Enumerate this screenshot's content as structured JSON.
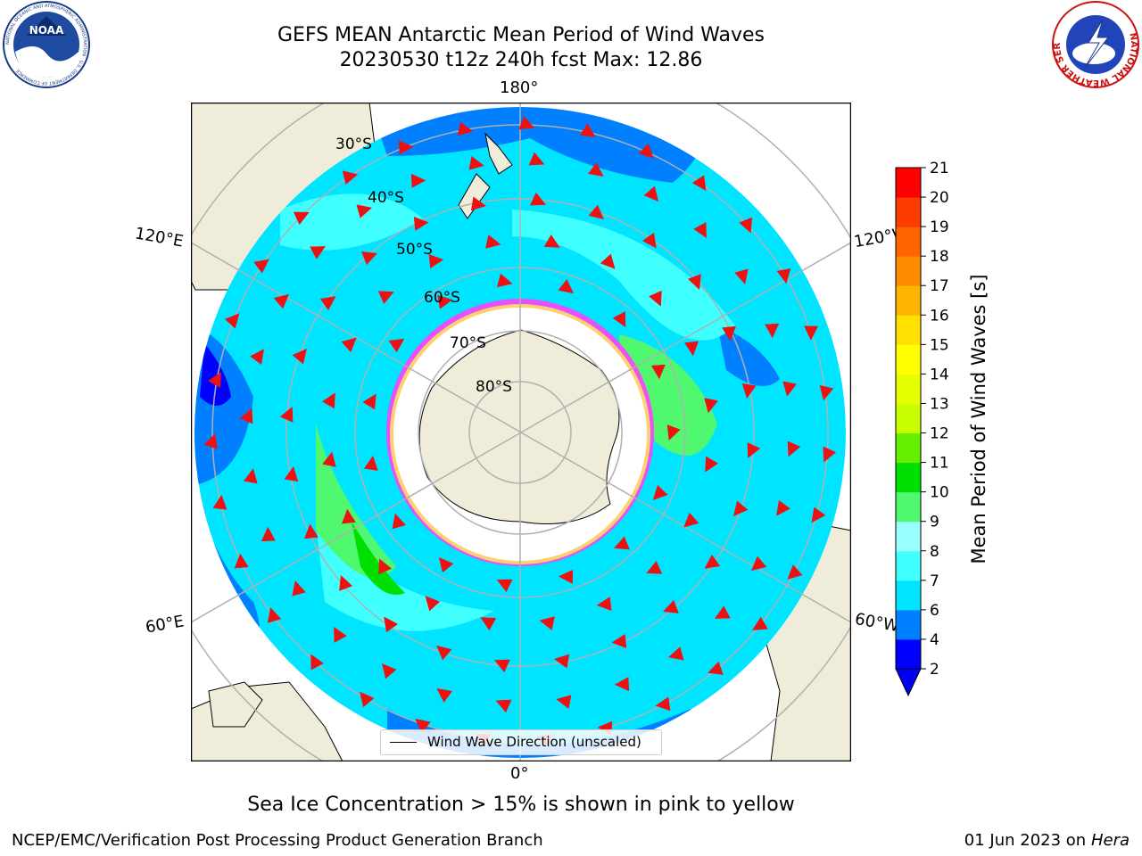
{
  "header": {
    "title_line1": "GEFS MEAN Antarctic Mean Period of Wind Waves",
    "title_line2": "20230530 t12z 240h fcst   Max: 12.86"
  },
  "logos": {
    "left": {
      "text": "NOAA",
      "ring_text": "NATIONAL OCEANIC AND ATMOSPHERIC ADMINISTRATION · U.S. DEPARTMENT OF COMMERCE"
    },
    "right": {
      "ring_text": "NATIONAL WEATHER SERVICE"
    }
  },
  "map": {
    "longitude_labels": {
      "top": "180°",
      "bottom": "0°",
      "upper_left": "120°E",
      "upper_right": "120°W",
      "lower_left": "60°E",
      "lower_right": "60°W"
    },
    "latitude_labels": [
      "30°S",
      "40°S",
      "50°S",
      "60°S",
      "70°S",
      "80°S"
    ],
    "legend_label": "Wind Wave Direction (unscaled)",
    "colors": {
      "land": "#efedd9",
      "ice": "#ffffff",
      "arrow": "#ee1111",
      "grid": "#b0b0b0"
    }
  },
  "colorbar": {
    "label": "Mean Period of Wind Waves [s]",
    "ticks": [
      "2",
      "4",
      "6",
      "7",
      "8",
      "9",
      "10",
      "11",
      "12",
      "13",
      "14",
      "15",
      "16",
      "17",
      "18",
      "19",
      "20",
      "21"
    ],
    "colors": [
      "#0000ff",
      "#0080ff",
      "#00e5ff",
      "#40ffff",
      "#9affff",
      "#50f870",
      "#00e000",
      "#66ee00",
      "#c8ff00",
      "#e6ff00",
      "#ffff00",
      "#ffe000",
      "#ffb400",
      "#ff8c00",
      "#ff6400",
      "#ff3c00",
      "#ff0000"
    ],
    "extend_color": "#0000ee"
  },
  "notes": {
    "sea_ice": "Sea Ice Concentration > 15% is shown in pink to yellow"
  },
  "footer": {
    "left": "NCEP/EMC/Verification Post Processing Product Generation Branch",
    "date": "01 Jun 2023 on",
    "machine": "Hera"
  }
}
